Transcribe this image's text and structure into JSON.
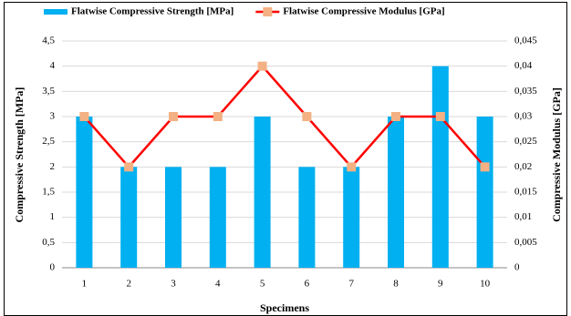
{
  "chart_data": {
    "type": "bar_line",
    "x_label": "Specimens",
    "y_label": "Compressive  Strength [MPa]",
    "y2_label": "Compressive Modulus [GPa]",
    "categories": [
      "1",
      "2",
      "3",
      "4",
      "5",
      "6",
      "7",
      "8",
      "9",
      "10"
    ],
    "series": [
      {
        "name": "Flatwise Compressive Strength [MPa]",
        "type": "bar",
        "color": "#00b0f0",
        "values": [
          3,
          2,
          2,
          2,
          3,
          2,
          2,
          3,
          4,
          3
        ]
      },
      {
        "name": "Flatwise Compressive Modulus [GPa]",
        "type": "line",
        "axis": "y2",
        "color": "#ff0000",
        "marker_color": "#f4b183",
        "values": [
          0.03,
          0.02,
          0.03,
          0.03,
          0.04,
          0.03,
          0.02,
          0.03,
          0.03,
          0.02
        ]
      }
    ],
    "ylim": [
      0,
      4.5
    ],
    "yticks": [
      0,
      {
        "value": 0.5,
        "label": "0,5"
      },
      1,
      {
        "value": 1.5,
        "label": "1,5"
      },
      2,
      {
        "value": 2.5,
        "label": "2,5"
      },
      3,
      {
        "value": 3.5,
        "label": "3,5"
      },
      4,
      {
        "value": 4.5,
        "label": "4,5"
      }
    ],
    "y2lim": [
      0,
      0.045
    ],
    "y2ticks": [
      0,
      {
        "value": 0.005,
        "label": "0,005"
      },
      {
        "value": 0.01,
        "label": "0,01"
      },
      {
        "value": 0.015,
        "label": "0,015"
      },
      {
        "value": 0.02,
        "label": "0,02"
      },
      {
        "value": 0.025,
        "label": "0,025"
      },
      {
        "value": 0.03,
        "label": "0,03"
      },
      {
        "value": 0.035,
        "label": "0,035"
      },
      {
        "value": 0.04,
        "label": "0,04"
      },
      {
        "value": 0.045,
        "label": "0,045"
      }
    ],
    "grid": true,
    "legend": "top"
  }
}
